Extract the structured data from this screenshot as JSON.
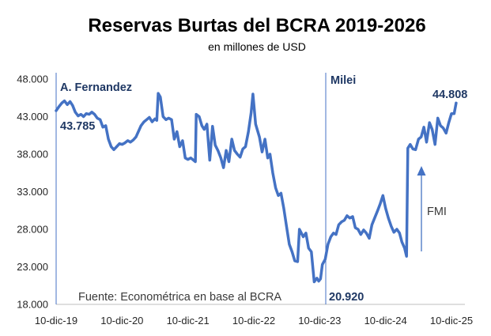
{
  "chart_data": {
    "type": "line",
    "title": "Reservas Burtas del BCRA 2019-2026",
    "subtitle": "en millones de USD",
    "ylim": [
      18000,
      48000
    ],
    "y_ticks": [
      "18.000",
      "23.000",
      "28.000",
      "33.000",
      "38.000",
      "43.000",
      "48.000"
    ],
    "x_tick_labels": [
      "10-dic-19",
      "10-dic-20",
      "10-dic-21",
      "10-dic-22",
      "10-dic-23",
      "10-dic-24",
      "10-dic-25"
    ],
    "grid": false,
    "source": "Fuente: Econométrica en base al BCRA",
    "annotations": {
      "fernandez": "A. Fernandez",
      "milei": "Milei",
      "start_value": "43.785",
      "min_value": "20.920",
      "end_value": "44.808",
      "fmi": "FMI"
    },
    "series": [
      {
        "color": "#4472c4",
        "points": [
          [
            "2019-12-10",
            43785
          ],
          [
            "2019-12-25",
            44300
          ],
          [
            "2020-01-10",
            44800
          ],
          [
            "2020-01-25",
            45100
          ],
          [
            "2020-02-10",
            44600
          ],
          [
            "2020-02-25",
            45000
          ],
          [
            "2020-03-10",
            44500
          ],
          [
            "2020-03-25",
            43600
          ],
          [
            "2020-04-10",
            43100
          ],
          [
            "2020-04-25",
            43300
          ],
          [
            "2020-05-10",
            43000
          ],
          [
            "2020-05-25",
            43400
          ],
          [
            "2020-06-10",
            43300
          ],
          [
            "2020-06-25",
            43600
          ],
          [
            "2020-07-10",
            43300
          ],
          [
            "2020-07-25",
            42800
          ],
          [
            "2020-08-10",
            42600
          ],
          [
            "2020-08-25",
            41600
          ],
          [
            "2020-09-10",
            41800
          ],
          [
            "2020-09-25",
            40000
          ],
          [
            "2020-10-10",
            39000
          ],
          [
            "2020-10-25",
            38600
          ],
          [
            "2020-11-10",
            39000
          ],
          [
            "2020-11-25",
            39400
          ],
          [
            "2020-12-10",
            39300
          ],
          [
            "2020-12-25",
            39500
          ],
          [
            "2021-01-10",
            39800
          ],
          [
            "2021-01-25",
            39600
          ],
          [
            "2021-02-10",
            39900
          ],
          [
            "2021-02-25",
            40300
          ],
          [
            "2021-03-10",
            41000
          ],
          [
            "2021-03-25",
            41800
          ],
          [
            "2021-04-10",
            42300
          ],
          [
            "2021-04-25",
            42600
          ],
          [
            "2021-05-10",
            42900
          ],
          [
            "2021-05-25",
            42300
          ],
          [
            "2021-06-10",
            42700
          ],
          [
            "2021-06-20",
            42500
          ],
          [
            "2021-06-28",
            46100
          ],
          [
            "2021-07-10",
            45600
          ],
          [
            "2021-07-25",
            43000
          ],
          [
            "2021-08-10",
            42600
          ],
          [
            "2021-08-25",
            42800
          ],
          [
            "2021-09-10",
            42600
          ],
          [
            "2021-09-25",
            40000
          ],
          [
            "2021-10-10",
            41000
          ],
          [
            "2021-10-25",
            39000
          ],
          [
            "2021-11-10",
            39800
          ],
          [
            "2021-11-25",
            37500
          ],
          [
            "2021-12-10",
            37300
          ],
          [
            "2021-12-25",
            37500
          ],
          [
            "2022-01-10",
            37200
          ],
          [
            "2022-01-20",
            37000
          ],
          [
            "2022-01-25",
            43300
          ],
          [
            "2022-02-10",
            43000
          ],
          [
            "2022-02-25",
            41800
          ],
          [
            "2022-03-10",
            41300
          ],
          [
            "2022-03-25",
            42000
          ],
          [
            "2022-04-10",
            37200
          ],
          [
            "2022-04-25",
            41700
          ],
          [
            "2022-05-10",
            39200
          ],
          [
            "2022-05-25",
            38500
          ],
          [
            "2022-06-10",
            37500
          ],
          [
            "2022-06-25",
            36200
          ],
          [
            "2022-07-10",
            38500
          ],
          [
            "2022-07-25",
            37000
          ],
          [
            "2022-08-10",
            40000
          ],
          [
            "2022-08-25",
            38500
          ],
          [
            "2022-09-10",
            38000
          ],
          [
            "2022-09-25",
            37600
          ],
          [
            "2022-10-10",
            38700
          ],
          [
            "2022-10-25",
            39000
          ],
          [
            "2022-11-10",
            41000
          ],
          [
            "2022-11-25",
            43500
          ],
          [
            "2022-12-05",
            46000
          ],
          [
            "2022-12-20",
            42000
          ],
          [
            "2023-01-10",
            40300
          ],
          [
            "2023-01-25",
            38300
          ],
          [
            "2023-02-10",
            40000
          ],
          [
            "2023-02-25",
            37500
          ],
          [
            "2023-03-10",
            38000
          ],
          [
            "2023-03-25",
            35500
          ],
          [
            "2023-04-10",
            33500
          ],
          [
            "2023-04-25",
            32500
          ],
          [
            "2023-05-10",
            32800
          ],
          [
            "2023-05-25",
            30800
          ],
          [
            "2023-06-10",
            28300
          ],
          [
            "2023-06-25",
            26000
          ],
          [
            "2023-07-10",
            25000
          ],
          [
            "2023-07-25",
            23800
          ],
          [
            "2023-08-10",
            23700
          ],
          [
            "2023-08-20",
            28000
          ],
          [
            "2023-09-10",
            27000
          ],
          [
            "2023-09-25",
            27500
          ],
          [
            "2023-10-10",
            25500
          ],
          [
            "2023-10-25",
            25000
          ],
          [
            "2023-11-10",
            21000
          ],
          [
            "2023-11-25",
            21500
          ],
          [
            "2023-12-05",
            21100
          ],
          [
            "2023-12-15",
            21400
          ],
          [
            "2023-12-25",
            23300
          ],
          [
            "2024-01-10",
            24000
          ],
          [
            "2024-01-25",
            26000
          ],
          [
            "2024-02-10",
            27000
          ],
          [
            "2024-02-25",
            27500
          ],
          [
            "2024-03-10",
            27300
          ],
          [
            "2024-03-25",
            28600
          ],
          [
            "2024-04-10",
            29000
          ],
          [
            "2024-04-25",
            29200
          ],
          [
            "2024-05-10",
            29800
          ],
          [
            "2024-05-25",
            29500
          ],
          [
            "2024-06-10",
            29700
          ],
          [
            "2024-06-25",
            28200
          ],
          [
            "2024-07-10",
            28000
          ],
          [
            "2024-07-25",
            27300
          ],
          [
            "2024-08-10",
            27900
          ],
          [
            "2024-08-25",
            27500
          ],
          [
            "2024-09-10",
            26800
          ],
          [
            "2024-09-25",
            28600
          ],
          [
            "2024-10-10",
            29500
          ],
          [
            "2024-10-25",
            30400
          ],
          [
            "2024-11-10",
            31400
          ],
          [
            "2024-11-25",
            32500
          ],
          [
            "2024-12-10",
            30800
          ],
          [
            "2024-12-25",
            29500
          ],
          [
            "2025-01-10",
            28400
          ],
          [
            "2025-01-25",
            27600
          ],
          [
            "2025-02-10",
            28000
          ],
          [
            "2025-02-25",
            27500
          ],
          [
            "2025-03-10",
            26300
          ],
          [
            "2025-03-25",
            25500
          ],
          [
            "2025-04-05",
            24400
          ],
          [
            "2025-04-12",
            38800
          ],
          [
            "2025-04-25",
            39300
          ],
          [
            "2025-05-10",
            38700
          ],
          [
            "2025-05-25",
            38600
          ],
          [
            "2025-06-10",
            40000
          ],
          [
            "2025-06-25",
            40300
          ],
          [
            "2025-07-10",
            41600
          ],
          [
            "2025-07-25",
            39600
          ],
          [
            "2025-08-10",
            42200
          ],
          [
            "2025-08-25",
            41300
          ],
          [
            "2025-09-10",
            39300
          ],
          [
            "2025-09-25",
            42800
          ],
          [
            "2025-10-10",
            41800
          ],
          [
            "2025-10-25",
            41500
          ],
          [
            "2025-11-10",
            40800
          ],
          [
            "2025-11-25",
            42200
          ],
          [
            "2025-12-10",
            43400
          ],
          [
            "2025-12-25",
            43400
          ],
          [
            "2026-01-05",
            44808
          ]
        ]
      }
    ]
  }
}
